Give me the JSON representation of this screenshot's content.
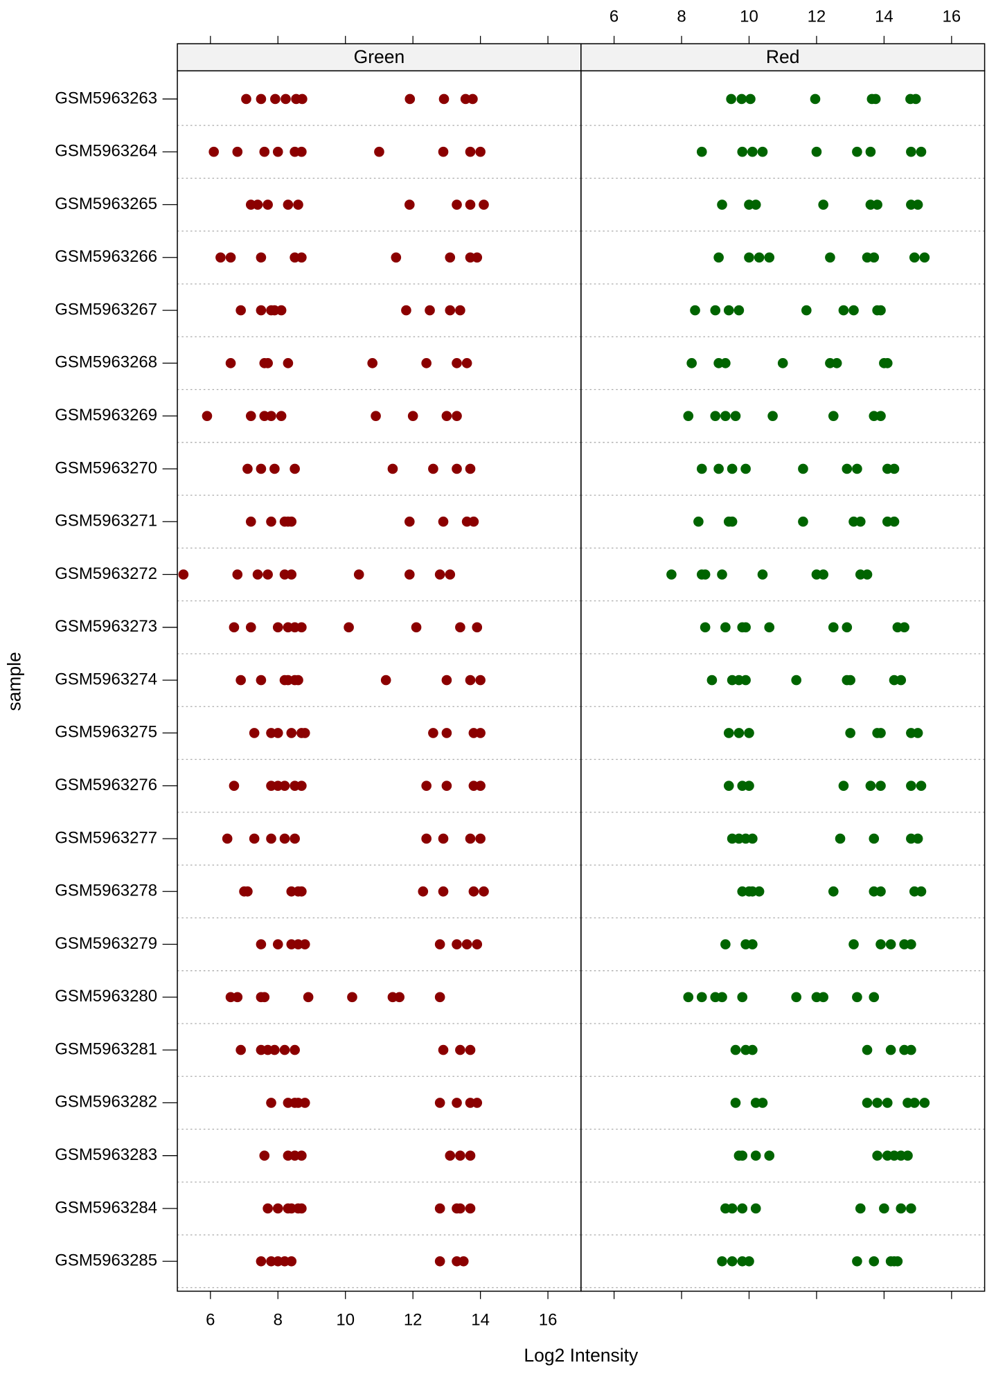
{
  "chart_data": {
    "type": "dotplot",
    "xlabel": "Log2 Intensity",
    "ylabel": "sample",
    "xlim": [
      5.02,
      16.98
    ],
    "xticks": [
      6,
      8,
      10,
      12,
      14,
      16
    ],
    "categories": [
      "GSM5963263",
      "GSM5963264",
      "GSM5963265",
      "GSM5963266",
      "GSM5963267",
      "GSM5963268",
      "GSM5963269",
      "GSM5963270",
      "GSM5963271",
      "GSM5963272",
      "GSM5963273",
      "GSM5963274",
      "GSM5963275",
      "GSM5963276",
      "GSM5963277",
      "GSM5963278",
      "GSM5963279",
      "GSM5963280",
      "GSM5963281",
      "GSM5963282",
      "GSM5963283",
      "GSM5963284",
      "GSM5963285"
    ],
    "series": [
      {
        "name": "Green",
        "color": "#8b0000",
        "values": [
          [
            7.06,
            7.5,
            7.92,
            8.23,
            8.54,
            8.72,
            11.91,
            12.92,
            13.56,
            13.77
          ],
          [
            6.1,
            6.8,
            7.6,
            8.0,
            8.5,
            8.7,
            11.0,
            12.9,
            13.7,
            14.0
          ],
          [
            7.2,
            7.4,
            7.7,
            8.3,
            8.6,
            11.9,
            13.3,
            13.7,
            14.1
          ],
          [
            6.3,
            6.6,
            7.5,
            8.5,
            8.7,
            11.5,
            13.1,
            13.7,
            13.9
          ],
          [
            6.9,
            7.5,
            7.8,
            7.9,
            8.1,
            11.8,
            12.5,
            13.1,
            13.4
          ],
          [
            6.6,
            7.6,
            7.7,
            8.3,
            10.8,
            12.4,
            13.3,
            13.6
          ],
          [
            5.9,
            7.2,
            7.6,
            7.8,
            8.1,
            10.9,
            12.0,
            13.0,
            13.3
          ],
          [
            7.1,
            7.5,
            7.9,
            8.5,
            11.4,
            12.6,
            13.3,
            13.7
          ],
          [
            7.2,
            7.8,
            8.2,
            8.3,
            8.4,
            11.9,
            12.9,
            13.6,
            13.8
          ],
          [
            5.2,
            6.8,
            7.4,
            7.7,
            8.2,
            8.4,
            10.4,
            11.9,
            12.8,
            13.1
          ],
          [
            6.7,
            7.2,
            8.0,
            8.3,
            8.5,
            8.7,
            10.1,
            12.1,
            13.4,
            13.9
          ],
          [
            6.9,
            7.5,
            8.2,
            8.3,
            8.5,
            8.6,
            11.2,
            13.0,
            13.7,
            14.0
          ],
          [
            7.3,
            7.8,
            8.0,
            8.4,
            8.7,
            8.8,
            12.6,
            13.0,
            13.8,
            14.0
          ],
          [
            6.7,
            7.8,
            8.0,
            8.2,
            8.5,
            8.7,
            12.4,
            13.0,
            13.8,
            14.0
          ],
          [
            6.5,
            7.3,
            7.8,
            8.2,
            8.5,
            12.4,
            12.9,
            13.7,
            14.0
          ],
          [
            7.0,
            7.1,
            8.4,
            8.6,
            8.7,
            12.3,
            12.9,
            13.8,
            14.1
          ],
          [
            7.5,
            8.0,
            8.4,
            8.6,
            8.8,
            12.8,
            13.3,
            13.6,
            13.9
          ],
          [
            6.6,
            6.8,
            7.5,
            7.6,
            8.9,
            10.2,
            11.4,
            11.6,
            12.8
          ],
          [
            6.9,
            7.5,
            7.7,
            7.9,
            8.2,
            8.5,
            12.9,
            13.4,
            13.7
          ],
          [
            7.8,
            8.3,
            8.5,
            8.6,
            8.8,
            12.8,
            13.3,
            13.7,
            13.9
          ],
          [
            7.6,
            8.3,
            8.5,
            8.7,
            13.1,
            13.4,
            13.7
          ],
          [
            7.7,
            8.0,
            8.3,
            8.4,
            8.6,
            8.7,
            12.8,
            13.3,
            13.4,
            13.7
          ],
          [
            7.5,
            7.8,
            8.0,
            8.2,
            8.4,
            12.8,
            13.3,
            13.5
          ]
        ]
      },
      {
        "name": "Red",
        "color": "#006400",
        "values": [
          [
            9.47,
            9.78,
            10.04,
            11.96,
            13.64,
            13.75,
            14.78,
            14.94
          ],
          [
            8.6,
            9.8,
            10.1,
            10.4,
            12.0,
            13.2,
            13.6,
            14.8,
            15.1
          ],
          [
            9.2,
            10.0,
            10.2,
            12.2,
            13.6,
            13.8,
            14.8,
            15.0
          ],
          [
            9.1,
            10.0,
            10.3,
            10.6,
            12.4,
            13.5,
            13.7,
            14.9,
            15.2
          ],
          [
            8.4,
            9.0,
            9.4,
            9.7,
            11.7,
            12.8,
            13.1,
            13.8,
            13.9
          ],
          [
            8.3,
            9.1,
            9.3,
            11.0,
            12.4,
            12.6,
            14.0,
            14.1
          ],
          [
            8.2,
            9.0,
            9.3,
            9.6,
            10.7,
            12.5,
            13.7,
            13.9
          ],
          [
            8.6,
            9.1,
            9.5,
            9.9,
            11.6,
            12.9,
            13.2,
            14.1,
            14.3
          ],
          [
            8.5,
            9.4,
            9.5,
            11.6,
            13.1,
            13.3,
            14.1,
            14.3
          ],
          [
            7.7,
            8.6,
            8.7,
            9.2,
            10.4,
            12.0,
            12.2,
            13.3,
            13.5
          ],
          [
            8.7,
            9.3,
            9.8,
            9.9,
            10.6,
            12.5,
            12.9,
            14.4,
            14.6
          ],
          [
            8.9,
            9.5,
            9.7,
            9.9,
            11.4,
            12.9,
            13.0,
            14.3,
            14.5
          ],
          [
            9.4,
            9.7,
            10.0,
            13.0,
            13.8,
            13.9,
            14.8,
            15.0
          ],
          [
            9.4,
            9.8,
            10.0,
            12.8,
            13.6,
            13.9,
            14.8,
            15.1
          ],
          [
            9.5,
            9.7,
            9.9,
            10.1,
            12.7,
            13.7,
            14.8,
            15.0
          ],
          [
            9.8,
            10.0,
            10.1,
            10.3,
            12.5,
            13.7,
            13.9,
            14.9,
            15.1
          ],
          [
            9.3,
            9.9,
            10.1,
            13.1,
            13.9,
            14.2,
            14.6,
            14.8
          ],
          [
            8.2,
            8.6,
            9.0,
            9.2,
            9.8,
            11.4,
            12.0,
            12.2,
            13.2,
            13.7
          ],
          [
            9.6,
            9.9,
            10.1,
            13.5,
            14.2,
            14.6,
            14.8
          ],
          [
            9.6,
            10.2,
            10.4,
            13.5,
            13.8,
            14.1,
            14.7,
            14.9,
            15.2
          ],
          [
            9.7,
            9.8,
            10.2,
            10.6,
            13.8,
            14.1,
            14.3,
            14.5,
            14.7
          ],
          [
            9.3,
            9.5,
            9.8,
            10.2,
            13.3,
            14.0,
            14.5,
            14.8
          ],
          [
            9.2,
            9.5,
            9.8,
            10.0,
            13.2,
            13.7,
            14.2,
            14.3,
            14.4
          ]
        ]
      }
    ]
  }
}
